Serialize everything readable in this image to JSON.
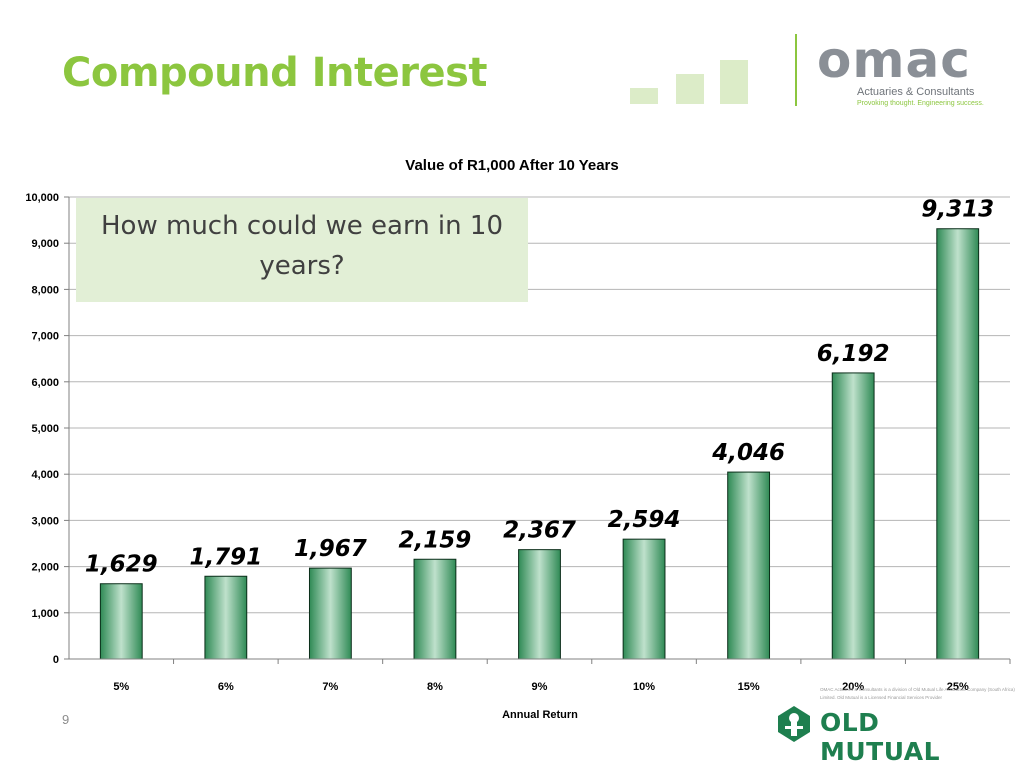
{
  "slide": {
    "title": "Compound Interest",
    "question": "How much could we earn in 10 years?",
    "page_number": "9"
  },
  "branding": {
    "omac_word": "omac",
    "omac_tagline": "Actuaries & Consultants",
    "omac_slogan": "Provoking thought. Engineering success.",
    "disclaimer": "OMAC Actuaries & Consultants is a division of Old Mutual Life Assurance Company (South Africa) Limited. Old Mutual is a Licensed Financial Services Provider",
    "old_mutual": "OLD MUTUAL",
    "brand_green": "#8cc63f",
    "old_mutual_green": "#1e7f4f"
  },
  "chart_data": {
    "type": "bar",
    "title": "Value of R1,000 After 10 Years",
    "xlabel": "Annual Return",
    "ylabel": "",
    "categories": [
      "5%",
      "6%",
      "7%",
      "8%",
      "9%",
      "10%",
      "15%",
      "20%",
      "25%"
    ],
    "values": [
      1629,
      1791,
      1967,
      2159,
      2367,
      2594,
      4046,
      6192,
      9313
    ],
    "data_labels": [
      "1,629",
      "1,791",
      "1,967",
      "2,159",
      "2,367",
      "2,594",
      "4,046",
      "6,192",
      "9,313"
    ],
    "ylim": [
      0,
      10000
    ],
    "yticks": [
      0,
      1000,
      2000,
      3000,
      4000,
      5000,
      6000,
      7000,
      8000,
      9000,
      10000
    ],
    "ytick_labels": [
      "0",
      "1,000",
      "2,000",
      "3,000",
      "4,000",
      "5,000",
      "6,000",
      "7,000",
      "8,000",
      "9,000",
      "10,000"
    ],
    "grid": true,
    "legend": "none",
    "bar_color": "#2e8b57"
  }
}
